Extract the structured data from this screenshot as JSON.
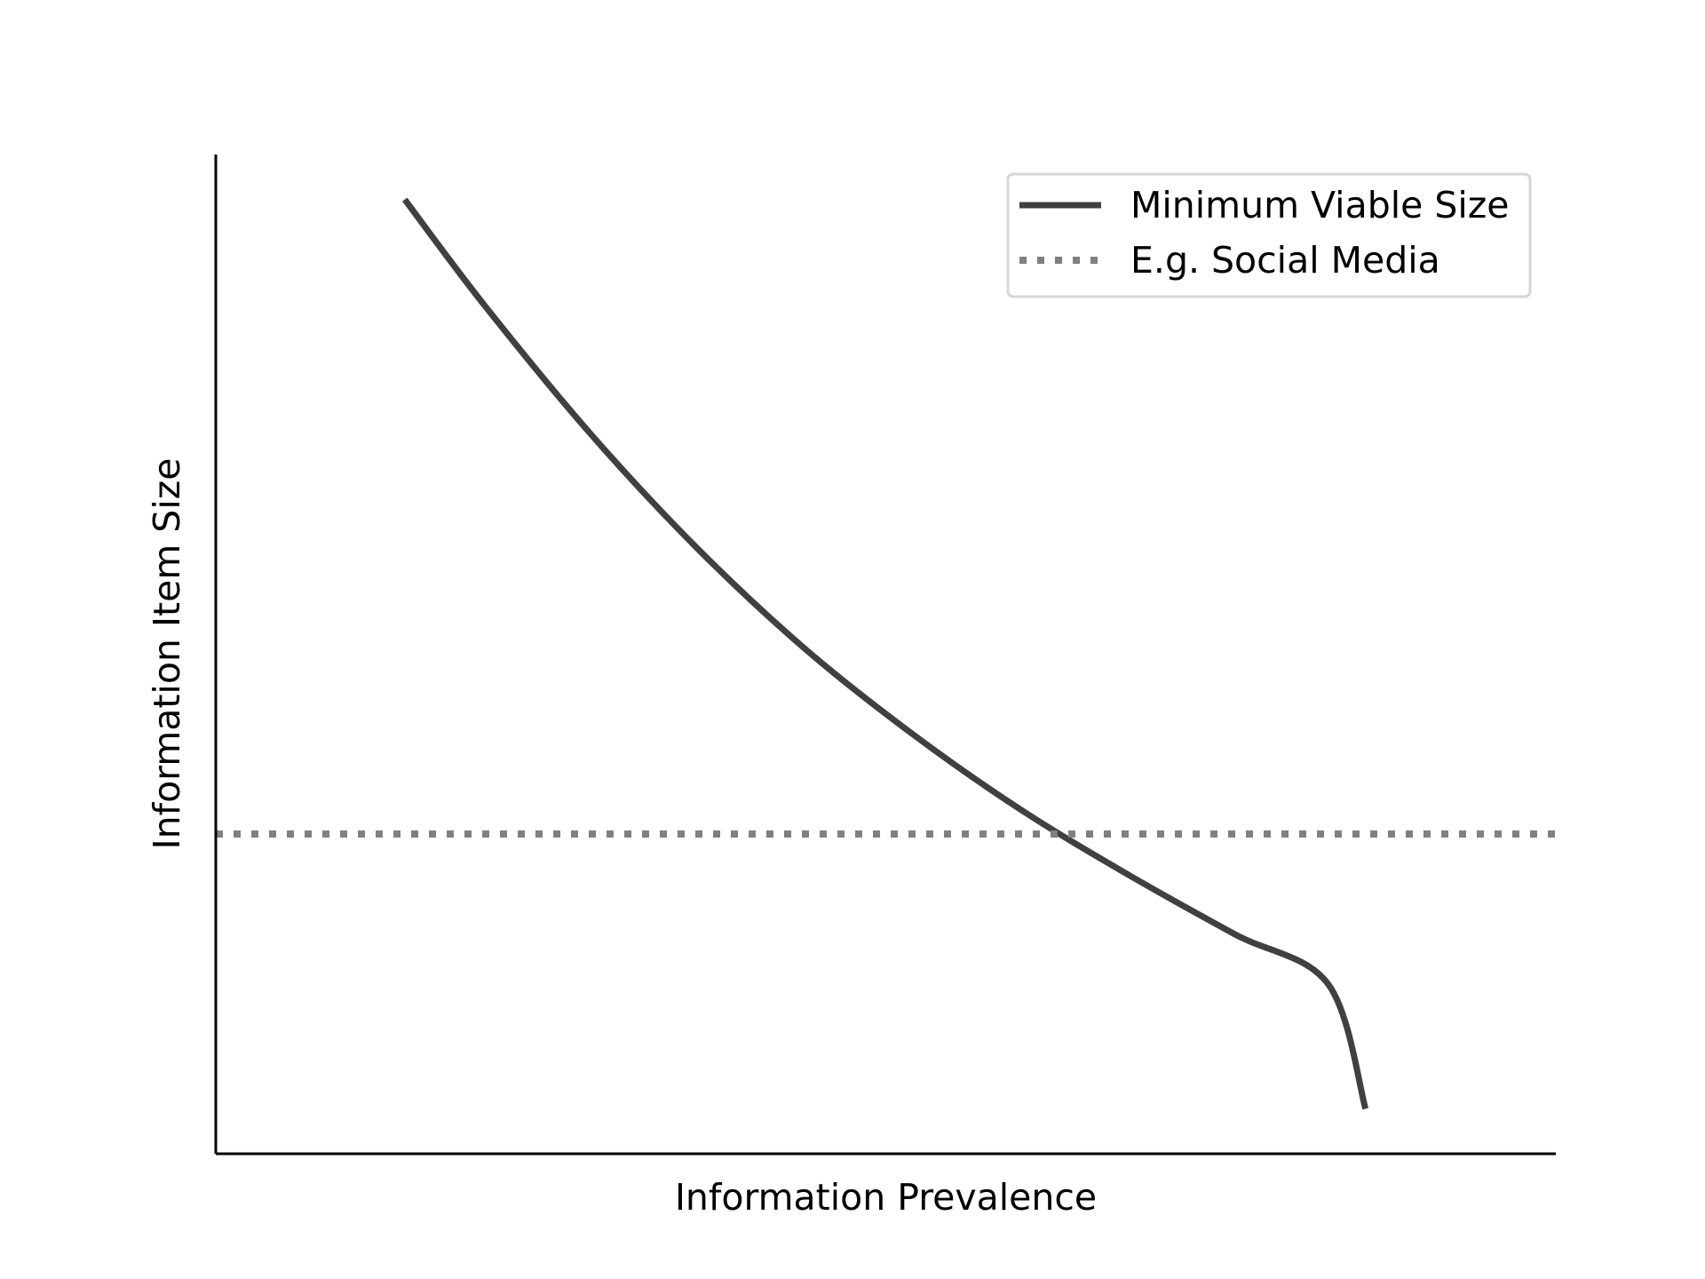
{
  "chart_data": {
    "type": "line",
    "xlabel": "Information Prevalence",
    "ylabel": "Information Item Size",
    "xlim": [
      0,
      10
    ],
    "ylim": [
      0,
      10
    ],
    "grid": false,
    "xticks": false,
    "yticks": false,
    "legend": {
      "placement": "top-right"
    },
    "series": [
      {
        "name": "Minimum Viable Size",
        "style": "solid",
        "color": "#404040",
        "points": [
          [
            1.41,
            9.55
          ],
          [
            2.0,
            8.5
          ],
          [
            2.8,
            7.2
          ],
          [
            3.6,
            6.05
          ],
          [
            4.4,
            5.05
          ],
          [
            5.2,
            4.2
          ],
          [
            6.0,
            3.45
          ],
          [
            6.8,
            2.8
          ],
          [
            7.6,
            2.2
          ],
          [
            8.3,
            1.7
          ],
          [
            8.58,
            0.45
          ]
        ]
      },
      {
        "name": "E.g. Social Media",
        "style": "dotted",
        "color": "#808080",
        "points": [
          [
            0,
            3.2
          ],
          [
            10,
            3.2
          ]
        ]
      }
    ]
  }
}
